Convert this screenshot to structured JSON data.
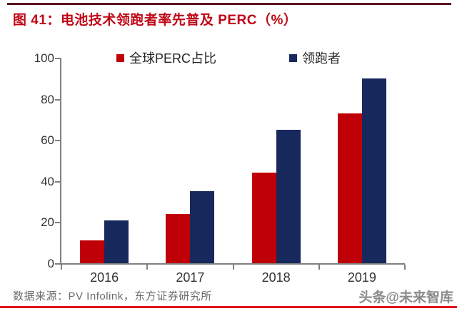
{
  "figure": {
    "title": "图 41：电池技术领跑者率先普及 PERC（%）",
    "source_note": "数据来源：PV Infolink，东方证券研究所",
    "watermark": "头条@未来智库"
  },
  "colors": {
    "title_red": "#c00616",
    "top_rule": "#5a1620",
    "bottom_rule": "#e8131d",
    "axis_gray": "#808080",
    "series_red": "#c00008",
    "series_navy": "#17295c"
  },
  "chart_data": {
    "type": "bar",
    "title": "",
    "xlabel": "",
    "ylabel": "",
    "categories": [
      "2016",
      "2017",
      "2018",
      "2019"
    ],
    "series": [
      {
        "name": "全球PERC占比",
        "color": "#c00008",
        "values": [
          11,
          24,
          44,
          73
        ]
      },
      {
        "name": "领跑者",
        "color": "#17295c",
        "values": [
          21,
          35,
          65,
          90
        ]
      }
    ],
    "ylim": [
      0,
      100
    ],
    "yticks": [
      0,
      20,
      40,
      60,
      80,
      100
    ],
    "grid": false,
    "legend_position": "top"
  }
}
